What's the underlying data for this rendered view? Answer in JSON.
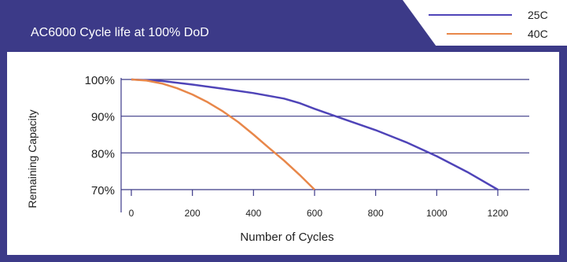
{
  "chart_data": {
    "type": "line",
    "title": "AC6000 Cycle life at 100% DoD",
    "xlabel": "Number of Cycles",
    "ylabel": "Remaining Capacity",
    "xlim": [
      0,
      1200
    ],
    "ylim": [
      70,
      100
    ],
    "x_ticks": [
      "0",
      "200",
      "400",
      "600",
      "800",
      "1000",
      "1200"
    ],
    "y_ticks": [
      "100%",
      "90%",
      "80%",
      "70%"
    ],
    "grid": "horizontal",
    "legend_position": "top-right",
    "series": [
      {
        "name": "25C",
        "color": "#4f44b8",
        "x": [
          0,
          100,
          200,
          300,
          400,
          500,
          550,
          600,
          700,
          800,
          900,
          1000,
          1100,
          1200
        ],
        "y": [
          100,
          99.6,
          98.6,
          97.5,
          96.3,
          94.8,
          93.6,
          92.0,
          89.1,
          86.2,
          82.9,
          79.1,
          74.8,
          70.0
        ]
      },
      {
        "name": "40C",
        "color": "#e8874a",
        "x": [
          0,
          50,
          100,
          150,
          200,
          250,
          300,
          350,
          400,
          450,
          500,
          550,
          600
        ],
        "y": [
          100,
          99.7,
          98.9,
          97.6,
          95.9,
          93.8,
          91.3,
          88.4,
          85.0,
          81.4,
          77.9,
          74.1,
          70.0
        ]
      }
    ]
  },
  "colors": {
    "header": "#3c3a88",
    "frame": "#3c3a88",
    "grid": "#3c3a88",
    "axis_text": "#222222"
  }
}
